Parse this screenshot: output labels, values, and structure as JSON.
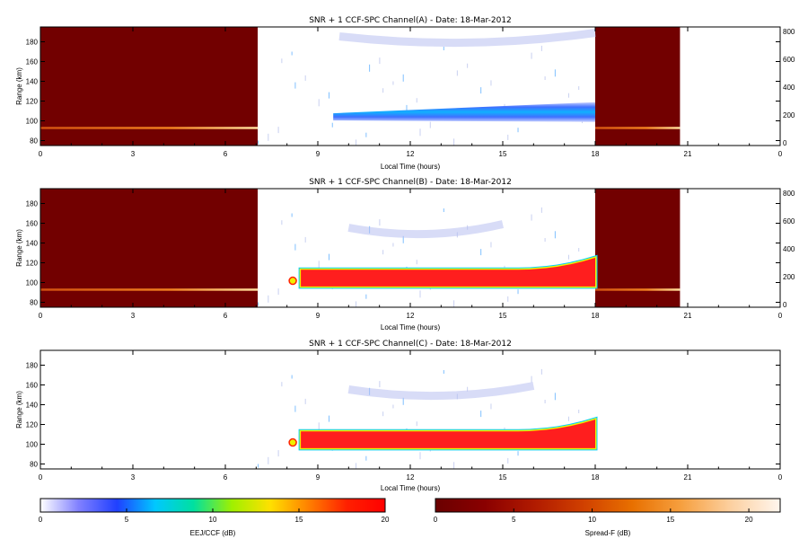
{
  "chart_data": [
    {
      "type": "heatmap",
      "title": "SNR + 1 CCF-SPC Channel(A) - Date: 18-Mar-2012",
      "xlabel": "Local Time (hours)",
      "ylabel": "Range (km)",
      "xlim": [
        0,
        24
      ],
      "ylim": [
        75,
        195
      ],
      "xticks": [
        "0",
        "3",
        "6",
        "9",
        "12",
        "15",
        "18",
        "21",
        "0"
      ],
      "yticks": [
        "80",
        "100",
        "120",
        "140",
        "160",
        "180"
      ],
      "right_yticks": [
        "0",
        "200",
        "400",
        "600",
        "800"
      ],
      "night_segments": [
        [
          0,
          7.05
        ],
        [
          18,
          20.75
        ]
      ],
      "daytime_window": [
        7.05,
        18
      ],
      "layer": {
        "start": 9.5,
        "end": 18,
        "center_start": 104,
        "center_end": 108,
        "peak_db": 6
      },
      "upper_echo": {
        "start": 9.7,
        "end": 18,
        "range": 180,
        "peak_db": 2
      }
    },
    {
      "type": "heatmap",
      "title": "SNR + 1 CCF-SPC Channel(B) - Date: 18-Mar-2012",
      "xlabel": "Local Time (hours)",
      "ylabel": "Range (km)",
      "xlim": [
        0,
        24
      ],
      "ylim": [
        75,
        195
      ],
      "xticks": [
        "0",
        "3",
        "6",
        "9",
        "12",
        "15",
        "18",
        "21",
        "0"
      ],
      "yticks": [
        "80",
        "100",
        "120",
        "140",
        "160",
        "180"
      ],
      "right_yticks": [
        "0",
        "200",
        "400",
        "600",
        "800"
      ],
      "night_segments": [
        [
          0,
          7.05
        ],
        [
          18,
          20.75
        ]
      ],
      "daytime_window": [
        7.05,
        18
      ],
      "layer": {
        "start": 8.1,
        "end": 18,
        "top_start": 113,
        "top_end": 125,
        "bottom": 96,
        "peak_db": 20
      },
      "upper_echo": {
        "start": 10,
        "end": 15,
        "range": 150,
        "peak_db": 2
      }
    },
    {
      "type": "heatmap",
      "title": "SNR + 1 CCF-SPC Channel(C) - Date: 18-Mar-2012",
      "xlabel": "Local Time (hours)",
      "ylabel": "Range (km)",
      "xlim": [
        0,
        24
      ],
      "ylim": [
        75,
        195
      ],
      "xticks": [
        "0",
        "3",
        "6",
        "9",
        "12",
        "15",
        "18",
        "21",
        "0"
      ],
      "yticks": [
        "80",
        "100",
        "120",
        "140",
        "160",
        "180"
      ],
      "daytime_window": [
        7.05,
        18
      ],
      "layer": {
        "start": 8.1,
        "end": 18,
        "top_start": 113,
        "top_end": 125,
        "bottom": 96,
        "peak_db": 20
      },
      "upper_echo": {
        "start": 10,
        "end": 16,
        "range": 150,
        "peak_db": 2
      }
    }
  ],
  "colorbars": [
    {
      "label": "EEJ/CCF (dB)",
      "range": [
        0,
        20
      ],
      "ticks": [
        "0",
        "5",
        "10",
        "15",
        "20"
      ],
      "stops": [
        "#ffffff",
        "#8080ff",
        "#2040ff",
        "#00c8ff",
        "#00e0a0",
        "#a0f000",
        "#ffe000",
        "#ff8000",
        "#ff2000",
        "#ff0000"
      ]
    },
    {
      "label": "Spread-F (dB)",
      "range": [
        0,
        22
      ],
      "ticks": [
        "0",
        "5",
        "10",
        "15",
        "20"
      ],
      "stops": [
        "#6a0000",
        "#8a0000",
        "#b01a00",
        "#d04000",
        "#e87000",
        "#f6a040",
        "#fcd0a0",
        "#fff6ee"
      ]
    }
  ],
  "colors": {
    "night": "#720000",
    "eej_peak": "#ff1e1e",
    "background": "#ffffff"
  }
}
